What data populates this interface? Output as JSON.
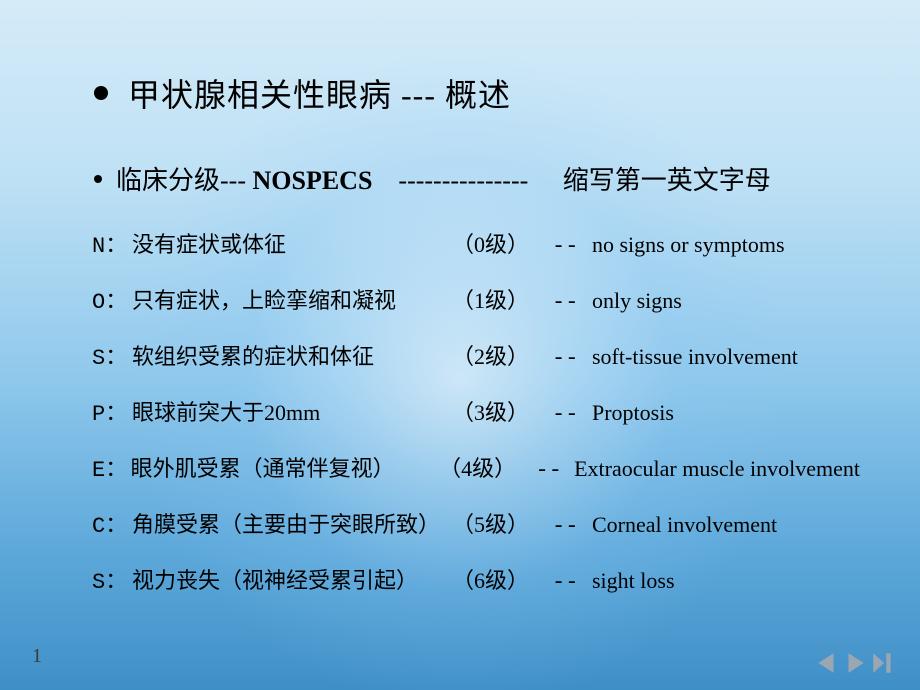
{
  "title": {
    "text": "甲状腺相关性眼病",
    "separator": "---",
    "suffix": "概述"
  },
  "subtitle": {
    "prefix": "临床分级---",
    "label": "NOSPECS",
    "dashline": "---------------",
    "note": "缩写第一英文字母"
  },
  "items": [
    {
      "letter": "N：",
      "chinese": "没有症状或体征",
      "grade": "（0级）",
      "dash": "--",
      "en": "no signs or symptoms"
    },
    {
      "letter": "O：",
      "chinese": "只有症状，上睑挛缩和凝视",
      "grade": "（1级）",
      "dash": "--",
      "en": " only signs"
    },
    {
      "letter": "S：",
      "chinese": "软组织受累的症状和体征",
      "grade": "（2级）",
      "dash": "--",
      "en": "soft-tissue involvement"
    },
    {
      "letter": "P：",
      "chinese": "眼球前突大于20mm",
      "grade": "（3级）",
      "dash": "--",
      "en": " Proptosis"
    },
    {
      "letter": "E：",
      "chinese": "眼外肌受累（通常伴复视）",
      "grade": "（4级）",
      "dash": "--",
      "en": " Extraocular muscle  involvement"
    },
    {
      "letter": "C：",
      "chinese": "角膜受累（主要由于突眼所致）",
      "grade": "（5级）",
      "dash": "--",
      "en": "Corneal involvement"
    },
    {
      "letter": "S：",
      "chinese": "视力丧失（视神经受累引起）",
      "grade": "（6级）",
      "dash": "--",
      "en": "sight loss"
    }
  ],
  "pageNumber": "1",
  "colors": {
    "navTriangle": "#9aa6b2"
  }
}
